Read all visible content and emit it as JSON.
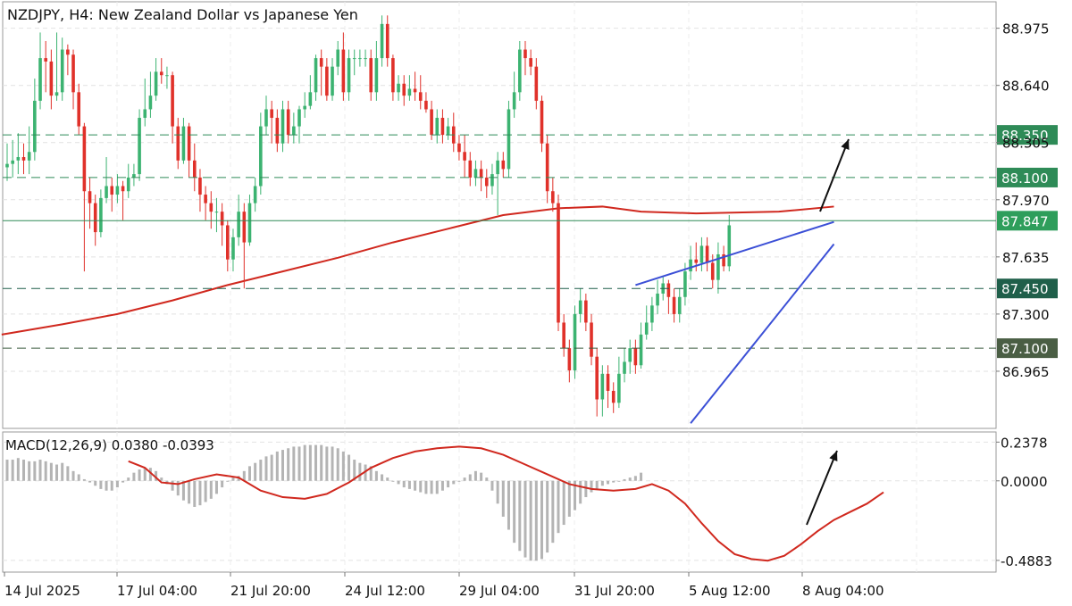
{
  "chart_data": [
    {
      "type": "candlestick",
      "title": "NZDJPY, H4:  New Zealand Dollar vs Japanese Yen",
      "symbol": "NZDJPY",
      "timeframe": "H4",
      "y_ticks": [
        88.975,
        88.64,
        88.305,
        87.97,
        87.635,
        87.3,
        86.965
      ],
      "y_tick_labels": [
        "88.975",
        "88.640",
        "88.305",
        "87.970",
        "87.635",
        "87.300",
        "86.965"
      ],
      "ylim": [
        86.63,
        89.13
      ],
      "x_tick_labels": [
        "14 Jul 2025",
        "17 Jul 04:00",
        "21 Jul 20:00",
        "24 Jul 12:00",
        "29 Jul 04:00",
        "31 Jul 20:00",
        "5 Aug 12:00",
        "8 Aug 04:00"
      ],
      "levels": [
        {
          "value": 88.35,
          "label": "88.350",
          "style": "dashed",
          "color": "#2e8b57",
          "tag_bg": "#2e8b57"
        },
        {
          "value": 88.1,
          "label": "88.100",
          "style": "dashed",
          "color": "#2e8b57",
          "tag_bg": "#2e8b57"
        },
        {
          "value": 87.847,
          "label": "87.847",
          "style": "solid",
          "color": "#2e8b57",
          "tag_bg": "#2e9e5b"
        },
        {
          "value": 87.45,
          "label": "87.450",
          "style": "dashed",
          "color": "#1f5f4a",
          "tag_bg": "#1f5f4a"
        },
        {
          "value": 87.1,
          "label": "87.100",
          "style": "dashed",
          "color": "#3a5a3e",
          "tag_bg": "#4a5e44"
        }
      ],
      "moving_average": {
        "color": "#d0281e",
        "points": [
          [
            -1,
            87.18
          ],
          [
            10,
            87.24
          ],
          [
            20,
            87.3
          ],
          [
            30,
            87.38
          ],
          [
            40,
            87.47
          ],
          [
            50,
            87.55
          ],
          [
            60,
            87.63
          ],
          [
            70,
            87.72
          ],
          [
            80,
            87.8
          ],
          [
            90,
            87.88
          ],
          [
            100,
            87.92
          ],
          [
            108,
            87.93
          ],
          [
            115,
            87.9
          ],
          [
            125,
            87.89
          ],
          [
            140,
            87.9
          ],
          [
            150,
            87.93
          ]
        ]
      },
      "wedge": {
        "color": "#3b4fd6",
        "upper": [
          [
            114,
            87.47
          ],
          [
            150,
            87.84
          ]
        ],
        "lower": [
          [
            124,
            86.66
          ],
          [
            150,
            87.71
          ]
        ]
      },
      "annotation": {
        "kind": "arrow-up",
        "color": "#111111"
      },
      "up_color": "#3cb371",
      "down_color": "#e0312a",
      "candles": [
        [
          88.16,
          88.18,
          88.3,
          88.08
        ],
        [
          88.18,
          88.2,
          88.32,
          88.1
        ],
        [
          88.2,
          88.22,
          88.36,
          88.12
        ],
        [
          88.22,
          88.2,
          88.3,
          88.12
        ],
        [
          88.2,
          88.25,
          88.4,
          88.12
        ],
        [
          88.25,
          88.55,
          88.68,
          88.2
        ],
        [
          88.55,
          88.8,
          88.95,
          88.5
        ],
        [
          88.8,
          88.78,
          88.9,
          88.6
        ],
        [
          88.78,
          88.58,
          88.85,
          88.5
        ],
        [
          88.58,
          88.6,
          88.95,
          88.55
        ],
        [
          88.6,
          88.85,
          88.92,
          88.55
        ],
        [
          88.85,
          88.82,
          88.88,
          88.7
        ],
        [
          88.82,
          88.6,
          88.85,
          88.5
        ],
        [
          88.6,
          88.4,
          88.65,
          88.35
        ],
        [
          88.4,
          88.02,
          88.42,
          87.55
        ],
        [
          88.02,
          87.95,
          88.1,
          87.8
        ],
        [
          87.95,
          87.78,
          88.0,
          87.7
        ],
        [
          87.78,
          87.98,
          88.03,
          87.75
        ],
        [
          87.98,
          88.05,
          88.22,
          87.95
        ],
        [
          88.05,
          88.0,
          88.1,
          87.9
        ],
        [
          88.0,
          88.05,
          88.12,
          87.95
        ],
        [
          88.05,
          88.02,
          88.08,
          87.85
        ],
        [
          88.02,
          88.1,
          88.18,
          87.98
        ],
        [
          88.1,
          88.12,
          88.18,
          88.05
        ],
        [
          88.12,
          88.45,
          88.5,
          88.08
        ],
        [
          88.45,
          88.5,
          88.68,
          88.4
        ],
        [
          88.5,
          88.58,
          88.72,
          88.45
        ],
        [
          88.58,
          88.72,
          88.8,
          88.55
        ],
        [
          88.72,
          88.7,
          88.8,
          88.65
        ],
        [
          88.7,
          88.7,
          88.75,
          88.62
        ],
        [
          88.7,
          88.4,
          88.72,
          88.3
        ],
        [
          88.4,
          88.2,
          88.45,
          88.15
        ],
        [
          88.2,
          88.4,
          88.45,
          88.18
        ],
        [
          88.4,
          88.2,
          88.42,
          88.1
        ],
        [
          88.2,
          88.1,
          88.3,
          88.02
        ],
        [
          88.1,
          88.0,
          88.15,
          87.9
        ],
        [
          88.0,
          87.95,
          88.05,
          87.85
        ],
        [
          87.95,
          87.9,
          88.02,
          87.8
        ],
        [
          87.9,
          87.9,
          87.98,
          87.78
        ],
        [
          87.9,
          87.82,
          87.95,
          87.7
        ],
        [
          87.82,
          87.62,
          87.85,
          87.55
        ],
        [
          87.62,
          87.75,
          87.8,
          87.55
        ],
        [
          87.75,
          87.9,
          88.0,
          87.7
        ],
        [
          87.9,
          87.72,
          87.95,
          87.45
        ],
        [
          87.72,
          87.95,
          88.0,
          87.7
        ],
        [
          87.95,
          88.05,
          88.1,
          87.9
        ],
        [
          88.05,
          88.4,
          88.48,
          88.0
        ],
        [
          88.4,
          88.5,
          88.58,
          88.35
        ],
        [
          88.5,
          88.45,
          88.55,
          88.3
        ],
        [
          88.45,
          88.3,
          88.5,
          88.25
        ],
        [
          88.3,
          88.5,
          88.55,
          88.25
        ],
        [
          88.5,
          88.35,
          88.55,
          88.3
        ],
        [
          88.35,
          88.4,
          88.48,
          88.3
        ],
        [
          88.4,
          88.5,
          88.52,
          88.3
        ],
        [
          88.5,
          88.52,
          88.6,
          88.45
        ],
        [
          88.52,
          88.6,
          88.7,
          88.5
        ],
        [
          88.6,
          88.8,
          88.82,
          88.55
        ],
        [
          88.8,
          88.75,
          88.85,
          88.58
        ],
        [
          88.75,
          88.58,
          88.8,
          88.55
        ],
        [
          88.58,
          88.75,
          88.8,
          88.55
        ],
        [
          88.75,
          88.85,
          88.9,
          88.7
        ],
        [
          88.85,
          88.6,
          88.95,
          88.55
        ],
        [
          88.6,
          88.8,
          88.85,
          88.55
        ],
        [
          88.8,
          88.8,
          88.85,
          88.7
        ],
        [
          88.8,
          88.8,
          88.85,
          88.75
        ],
        [
          88.8,
          88.8,
          88.85,
          88.75
        ],
        [
          88.8,
          88.6,
          88.85,
          88.55
        ],
        [
          88.6,
          88.8,
          88.9,
          88.55
        ],
        [
          88.8,
          89.0,
          89.05,
          88.75
        ],
        [
          89.0,
          88.8,
          89.05,
          88.75
        ],
        [
          88.8,
          88.6,
          88.82,
          88.55
        ],
        [
          88.6,
          88.65,
          88.7,
          88.55
        ],
        [
          88.65,
          88.58,
          88.7,
          88.52
        ],
        [
          88.58,
          88.62,
          88.7,
          88.55
        ],
        [
          88.62,
          88.6,
          88.72,
          88.55
        ],
        [
          88.6,
          88.55,
          88.7,
          88.5
        ],
        [
          88.55,
          88.5,
          88.6,
          88.48
        ],
        [
          88.5,
          88.35,
          88.55,
          88.32
        ],
        [
          88.35,
          88.45,
          88.5,
          88.3
        ],
        [
          88.45,
          88.35,
          88.5,
          88.3
        ],
        [
          88.35,
          88.4,
          88.45,
          88.32
        ],
        [
          88.4,
          88.3,
          88.48,
          88.25
        ],
        [
          88.3,
          88.25,
          88.35,
          88.2
        ],
        [
          88.25,
          88.2,
          88.35,
          88.1
        ],
        [
          88.2,
          88.1,
          88.25,
          88.05
        ],
        [
          88.1,
          88.15,
          88.2,
          88.05
        ],
        [
          88.15,
          88.1,
          88.2,
          88.02
        ],
        [
          88.1,
          88.05,
          88.15,
          87.98
        ],
        [
          88.05,
          88.12,
          88.18,
          88.0
        ],
        [
          88.12,
          88.2,
          88.25,
          87.88
        ],
        [
          88.2,
          88.15,
          88.25,
          88.1
        ],
        [
          88.15,
          88.5,
          88.55,
          88.1
        ],
        [
          88.5,
          88.6,
          88.72,
          88.45
        ],
        [
          88.6,
          88.85,
          88.9,
          88.55
        ],
        [
          88.85,
          88.8,
          88.9,
          88.7
        ],
        [
          88.8,
          88.75,
          88.85,
          88.7
        ],
        [
          88.75,
          88.55,
          88.8,
          88.5
        ],
        [
          88.55,
          88.3,
          88.58,
          88.25
        ],
        [
          88.3,
          88.02,
          88.35,
          87.95
        ],
        [
          88.02,
          87.95,
          88.1,
          87.9
        ],
        [
          87.95,
          87.25,
          88.0,
          87.2
        ],
        [
          87.25,
          87.1,
          87.3,
          87.05
        ],
        [
          87.1,
          86.97,
          87.15,
          86.9
        ],
        [
          86.97,
          87.3,
          87.35,
          86.92
        ],
        [
          87.3,
          87.38,
          87.45,
          87.25
        ],
        [
          87.38,
          87.25,
          87.42,
          87.2
        ],
        [
          87.25,
          87.05,
          87.3,
          87.0
        ],
        [
          87.05,
          86.8,
          87.1,
          86.7
        ],
        [
          86.8,
          86.95,
          87.0,
          86.7
        ],
        [
          86.95,
          86.85,
          87.0,
          86.75
        ],
        [
          86.85,
          86.78,
          86.9,
          86.72
        ],
        [
          86.78,
          86.95,
          87.05,
          86.75
        ],
        [
          86.95,
          87.02,
          87.1,
          86.9
        ],
        [
          87.02,
          87.1,
          87.15,
          86.95
        ],
        [
          87.1,
          87.0,
          87.15,
          86.95
        ],
        [
          87.0,
          87.18,
          87.25,
          86.98
        ],
        [
          87.18,
          87.25,
          87.35,
          87.15
        ],
        [
          87.25,
          87.35,
          87.4,
          87.2
        ],
        [
          87.35,
          87.42,
          87.5,
          87.3
        ],
        [
          87.42,
          87.48,
          87.52,
          87.38
        ],
        [
          87.48,
          87.4,
          87.5,
          87.3
        ],
        [
          87.4,
          87.3,
          87.45,
          87.25
        ],
        [
          87.3,
          87.4,
          87.45,
          87.25
        ],
        [
          87.4,
          87.55,
          87.6,
          87.35
        ],
        [
          87.55,
          87.62,
          87.7,
          87.5
        ],
        [
          87.62,
          87.6,
          87.72,
          87.55
        ],
        [
          87.6,
          87.7,
          87.75,
          87.55
        ],
        [
          87.7,
          87.6,
          87.75,
          87.55
        ],
        [
          87.6,
          87.5,
          87.65,
          87.45
        ],
        [
          87.5,
          87.65,
          87.72,
          87.42
        ],
        [
          87.65,
          87.58,
          87.7,
          87.55
        ],
        [
          87.58,
          87.82,
          87.88,
          87.55
        ]
      ]
    },
    {
      "type": "macd",
      "label": "MACD(12,26,9) 0.0380 -0.0393",
      "y_ticks": [
        0.2378,
        0.0,
        -0.4883
      ],
      "y_tick_labels": [
        "0.2378",
        "0.0000",
        "-0.4883"
      ],
      "ylim": [
        -0.56,
        0.3
      ],
      "histogram_color": "#b4b4b4",
      "signal_color": "#d0281e",
      "histogram": [
        0.13,
        0.13,
        0.14,
        0.13,
        0.12,
        0.12,
        0.13,
        0.12,
        0.11,
        0.1,
        0.11,
        0.09,
        0.06,
        0.04,
        0.01,
        -0.01,
        -0.03,
        -0.05,
        -0.06,
        -0.06,
        -0.04,
        -0.01,
        0.02,
        0.05,
        0.07,
        0.08,
        0.08,
        0.06,
        0.02,
        -0.02,
        -0.06,
        -0.09,
        -0.12,
        -0.14,
        -0.16,
        -0.15,
        -0.13,
        -0.11,
        -0.08,
        -0.04,
        -0.0,
        0.02,
        0.03,
        0.06,
        0.09,
        0.11,
        0.13,
        0.15,
        0.16,
        0.18,
        0.19,
        0.2,
        0.21,
        0.21,
        0.22,
        0.22,
        0.22,
        0.22,
        0.21,
        0.21,
        0.2,
        0.18,
        0.16,
        0.13,
        0.11,
        0.1,
        0.09,
        0.06,
        0.04,
        0.02,
        0.0,
        -0.02,
        -0.04,
        -0.05,
        -0.06,
        -0.07,
        -0.08,
        -0.08,
        -0.08,
        -0.06,
        -0.04,
        -0.02,
        0.0,
        0.02,
        0.04,
        0.06,
        0.05,
        0.02,
        -0.06,
        -0.14,
        -0.22,
        -0.3,
        -0.38,
        -0.43,
        -0.47,
        -0.49,
        -0.49,
        -0.48,
        -0.44,
        -0.38,
        -0.32,
        -0.27,
        -0.22,
        -0.18,
        -0.14,
        -0.1,
        -0.07,
        -0.05,
        -0.03,
        -0.02,
        -0.01,
        0.0,
        0.01,
        0.02,
        0.03,
        0.05
      ],
      "signal": [
        [
          22,
          0.12
        ],
        [
          25,
          0.08
        ],
        [
          28,
          -0.01
        ],
        [
          31,
          -0.02
        ],
        [
          34,
          0.01
        ],
        [
          38,
          0.04
        ],
        [
          42,
          0.02
        ],
        [
          46,
          -0.06
        ],
        [
          50,
          -0.1
        ],
        [
          54,
          -0.11
        ],
        [
          58,
          -0.08
        ],
        [
          62,
          -0.01
        ],
        [
          66,
          0.08
        ],
        [
          70,
          0.14
        ],
        [
          74,
          0.18
        ],
        [
          78,
          0.2
        ],
        [
          82,
          0.21
        ],
        [
          86,
          0.2
        ],
        [
          90,
          0.16
        ],
        [
          94,
          0.1
        ],
        [
          98,
          0.04
        ],
        [
          102,
          -0.02
        ],
        [
          106,
          -0.05
        ],
        [
          110,
          -0.06
        ],
        [
          114,
          -0.05
        ],
        [
          117,
          -0.02
        ],
        [
          120,
          -0.06
        ],
        [
          123,
          -0.14
        ],
        [
          126,
          -0.26
        ],
        [
          129,
          -0.37
        ],
        [
          132,
          -0.45
        ],
        [
          135,
          -0.48
        ],
        [
          138,
          -0.49
        ],
        [
          141,
          -0.46
        ],
        [
          144,
          -0.39
        ],
        [
          147,
          -0.31
        ],
        [
          150,
          -0.24
        ],
        [
          153,
          -0.19
        ],
        [
          156,
          -0.14
        ],
        [
          159,
          -0.07
        ]
      ],
      "annotation": {
        "kind": "arrow-up",
        "color": "#111111"
      }
    }
  ]
}
